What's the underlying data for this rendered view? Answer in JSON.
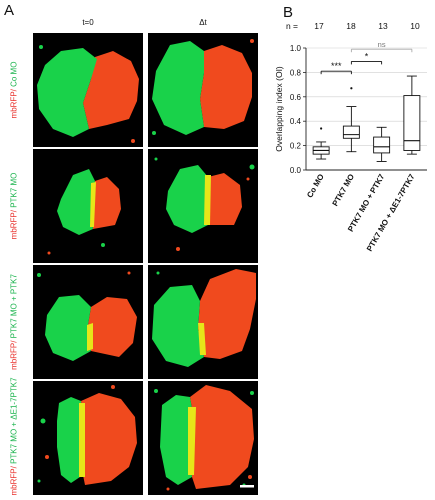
{
  "figure": {
    "panel_a": {
      "letter": "A",
      "columns": [
        "t=0",
        "Δt"
      ],
      "rows": [
        {
          "line1": "mbRFP/",
          "line2": "Co MO"
        },
        {
          "line1": "mbRFP/",
          "line2": "PTK7 MO"
        },
        {
          "line1": "mbRFP/",
          "line2": "PTK7 MO + PTK7"
        },
        {
          "line1": "mbRFP/",
          "line2": "PTK7 MO + ΔE1-7PTK7"
        }
      ],
      "colors": {
        "green": "#19d24a",
        "red": "#f04a1e",
        "yellow": "#e6e619",
        "background": "#000000"
      }
    },
    "panel_b": {
      "letter": "B",
      "n_label": "n =",
      "n_values": [
        "17",
        "18",
        "13",
        "10"
      ]
    }
  },
  "chart_data": {
    "type": "box",
    "ylabel": "Overlapping index (OI)",
    "xlabel": "",
    "ylim": [
      0,
      1.0
    ],
    "yticks": [
      "0.0",
      "0.2",
      "0.4",
      "0.6",
      "0.8",
      "1.0"
    ],
    "grid": true,
    "categories": [
      "Co MO",
      "PTK7 MO",
      "PTK7 MO + PTK7",
      "PTK7 MO + ΔE1-7PTK7"
    ],
    "boxes": [
      {
        "category": "Co MO",
        "min": 0.09,
        "q1": 0.13,
        "median": 0.16,
        "q3": 0.19,
        "max": 0.23,
        "outliers": [
          0.34
        ]
      },
      {
        "category": "PTK7 MO",
        "min": 0.15,
        "q1": 0.26,
        "median": 0.29,
        "q3": 0.36,
        "max": 0.52,
        "outliers": [
          0.67
        ]
      },
      {
        "category": "PTK7 MO + PTK7",
        "min": 0.07,
        "q1": 0.14,
        "median": 0.19,
        "q3": 0.27,
        "max": 0.35,
        "outliers": []
      },
      {
        "category": "PTK7 MO + ΔE1-7PTK7",
        "min": 0.13,
        "q1": 0.16,
        "median": 0.24,
        "q3": 0.61,
        "max": 0.77,
        "outliers": []
      }
    ],
    "significance": [
      {
        "from": 0,
        "to": 1,
        "y": 0.81,
        "label": "***"
      },
      {
        "from": 1,
        "to": 2,
        "y": 0.89,
        "label": "*"
      },
      {
        "from": 1,
        "to": 3,
        "y": 0.99,
        "label": "ns"
      }
    ]
  }
}
